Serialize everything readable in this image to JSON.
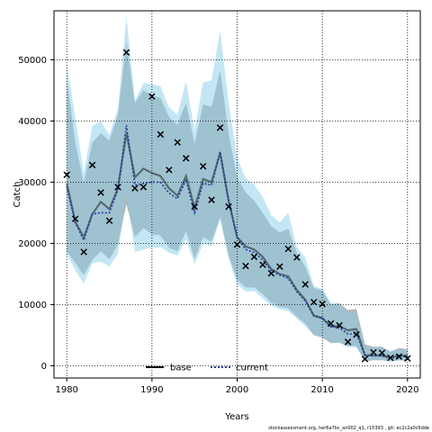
{
  "footer": "stockassessment.org, her6a7bc_an002_q1, r15393 , git: ec2c2a0c6dde",
  "chart_data": {
    "type": "line",
    "xlabel": "Years",
    "ylabel": "Catch",
    "xlim": [
      1978.5,
      2021.5
    ],
    "ylim": [
      -2000,
      58000
    ],
    "x_ticks": [
      1980,
      1990,
      2000,
      2010,
      2020
    ],
    "y_ticks": [
      0,
      10000,
      20000,
      30000,
      40000,
      50000
    ],
    "x_tick_labels": [
      "1980",
      "1990",
      "2000",
      "2010",
      "2020"
    ],
    "y_tick_labels": [
      "0",
      "10000",
      "20000",
      "30000",
      "40000",
      "50000"
    ],
    "grid": "dotted, at ticks",
    "legend": {
      "placement": "bottom-center",
      "entries": [
        "base",
        "current"
      ]
    },
    "colors": {
      "base_band": "#a9a9a9",
      "current_band": "#87ceeb",
      "base_line": "#000000",
      "current_line": "#1f3f9f",
      "observed": "#000000"
    },
    "years": [
      1980,
      1981,
      1982,
      1983,
      1984,
      1985,
      1986,
      1987,
      1988,
      1989,
      1990,
      1991,
      1992,
      1993,
      1994,
      1995,
      1996,
      1997,
      1998,
      1999,
      2000,
      2001,
      2002,
      2003,
      2004,
      2005,
      2006,
      2007,
      2008,
      2009,
      2010,
      2011,
      2012,
      2013,
      2014,
      2015,
      2016,
      2017,
      2018,
      2019,
      2020
    ],
    "series": [
      {
        "name": "base",
        "style": "solid",
        "values": [
          29800,
          23500,
          21000,
          24800,
          26800,
          25600,
          29000,
          38000,
          30800,
          32200,
          31500,
          31000,
          29000,
          27800,
          31000,
          25800,
          30500,
          30000,
          34800,
          27000,
          21000,
          19500,
          19000,
          17800,
          15800,
          15000,
          14600,
          12400,
          10800,
          8200,
          7800,
          6400,
          6500,
          5800,
          6000,
          1700,
          1700,
          1700,
          1300,
          1700,
          1600
        ],
        "lower": [
          18700,
          16800,
          14800,
          17300,
          18700,
          17400,
          19800,
          26400,
          21000,
          22500,
          21500,
          21300,
          19300,
          18700,
          22000,
          17500,
          21000,
          20300,
          24200,
          18000,
          14000,
          12800,
          12800,
          11700,
          10300,
          9600,
          9400,
          8000,
          6900,
          5000,
          4600,
          3700,
          3800,
          3200,
          3200,
          700,
          900,
          900,
          700,
          900,
          800
        ],
        "upper": [
          47000,
          36500,
          29800,
          36500,
          38000,
          36800,
          41000,
          53000,
          43000,
          45000,
          44200,
          43800,
          40600,
          39400,
          43000,
          36300,
          42700,
          42300,
          48300,
          38000,
          30800,
          28300,
          27000,
          25000,
          22800,
          21800,
          22400,
          18500,
          16200,
          12700,
          12300,
          10000,
          10200,
          9100,
          9300,
          3500,
          3100,
          3100,
          2300,
          2900,
          2700
        ]
      },
      {
        "name": "current",
        "style": "dotted",
        "values": [
          29300,
          23400,
          20500,
          24800,
          25000,
          25000,
          28700,
          39300,
          29500,
          29800,
          30000,
          30000,
          28200,
          27300,
          30400,
          25000,
          29800,
          29500,
          35000,
          27000,
          21000,
          19000,
          18500,
          17300,
          15500,
          14800,
          14300,
          12100,
          10600,
          8100,
          7700,
          6400,
          6200,
          5200,
          5200,
          1700,
          1600,
          1600,
          1200,
          1500,
          1500
        ],
        "lower": [
          18200,
          15600,
          13400,
          16800,
          17000,
          16200,
          18300,
          28000,
          18600,
          19000,
          19300,
          19400,
          18500,
          18000,
          20600,
          16600,
          19900,
          19600,
          24000,
          17500,
          13300,
          12100,
          12200,
          11000,
          9800,
          9200,
          8900,
          7700,
          6500,
          5000,
          4700,
          3900,
          3700,
          3100,
          3000,
          800,
          900,
          900,
          700,
          900,
          800
        ],
        "upper": [
          49500,
          40500,
          31500,
          39200,
          40000,
          37700,
          42000,
          57000,
          43300,
          46200,
          46000,
          45700,
          42200,
          41000,
          46500,
          38400,
          46300,
          46600,
          54800,
          43000,
          34000,
          30600,
          29600,
          27600,
          24600,
          23400,
          25000,
          19400,
          17700,
          13000,
          12600,
          10300,
          10200,
          8800,
          8600,
          3300,
          3000,
          3000,
          2400,
          2800,
          2600
        ]
      }
    ],
    "observed": {
      "marker": "x",
      "values": [
        31200,
        24000,
        18600,
        32800,
        28300,
        23700,
        29200,
        51200,
        29000,
        29200,
        44000,
        37800,
        32000,
        36500,
        33900,
        26000,
        32600,
        27100,
        38900,
        26000,
        19800,
        16300,
        17800,
        16500,
        15100,
        16200,
        19100,
        17700,
        13300,
        10400,
        10100,
        6900,
        6600,
        3900,
        5100,
        1100,
        2200,
        2100,
        1300,
        1500,
        1200
      ]
    }
  }
}
